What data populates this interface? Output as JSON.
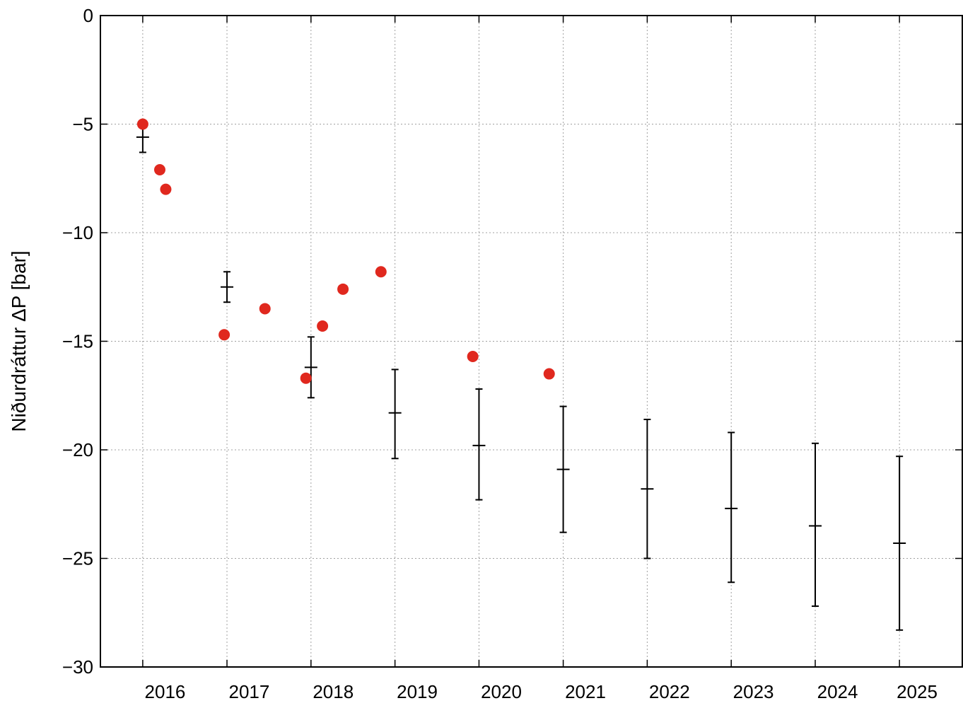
{
  "chart_data": {
    "type": "scatter",
    "title": "",
    "xlabel": "",
    "ylabel": "Niðurdráttur ΔP [bar]",
    "xlim": [
      "2015-07-01",
      "2025-10-01"
    ],
    "ylim": [
      -30,
      0
    ],
    "yticks": [
      0,
      -5,
      -10,
      -15,
      -20,
      -25,
      -30
    ],
    "ytick_labels": [
      "0",
      "−5",
      "−10",
      "−15",
      "−20",
      "−25",
      "−30"
    ],
    "xticks": [
      "2016",
      "2017",
      "2018",
      "2019",
      "2020",
      "2021",
      "2022",
      "2023",
      "2024",
      "2025"
    ],
    "grid": true,
    "colors": {
      "measured": "#e0281e",
      "predicted": "#000000"
    },
    "series": [
      {
        "kind": "points",
        "points": [
          {
            "x": "2016-01-01",
            "y": -5.0
          },
          {
            "x": "2016-03-15",
            "y": -7.1
          },
          {
            "x": "2016-04-10",
            "y": -8.0
          },
          {
            "x": "2016-12-20",
            "y": -14.7
          },
          {
            "x": "2017-06-15",
            "y": -13.5
          },
          {
            "x": "2017-12-10",
            "y": -16.7
          },
          {
            "x": "2018-02-20",
            "y": -14.3
          },
          {
            "x": "2018-05-20",
            "y": -12.6
          },
          {
            "x": "2018-11-01",
            "y": -11.8
          },
          {
            "x": "2019-12-05",
            "y": -15.7
          },
          {
            "x": "2020-11-01",
            "y": -16.5
          }
        ]
      },
      {
        "kind": "errorbars",
        "points": [
          {
            "x": "2016-01-01",
            "y": -5.6,
            "low": -6.3,
            "high": -5.0
          },
          {
            "x": "2017-01-01",
            "y": -12.5,
            "low": -13.2,
            "high": -11.8
          },
          {
            "x": "2018-01-01",
            "y": -16.2,
            "low": -17.6,
            "high": -14.8
          },
          {
            "x": "2019-01-01",
            "y": -18.3,
            "low": -20.4,
            "high": -16.3
          },
          {
            "x": "2020-01-01",
            "y": -19.8,
            "low": -22.3,
            "high": -17.2
          },
          {
            "x": "2021-01-01",
            "y": -20.9,
            "low": -23.8,
            "high": -18.0
          },
          {
            "x": "2022-01-01",
            "y": -21.8,
            "low": -25.0,
            "high": -18.6
          },
          {
            "x": "2023-01-01",
            "y": -22.7,
            "low": -26.1,
            "high": -19.2
          },
          {
            "x": "2024-01-01",
            "y": -23.5,
            "low": -27.2,
            "high": -19.7
          },
          {
            "x": "2025-01-01",
            "y": -24.3,
            "low": -28.3,
            "high": -20.3
          }
        ]
      }
    ]
  }
}
